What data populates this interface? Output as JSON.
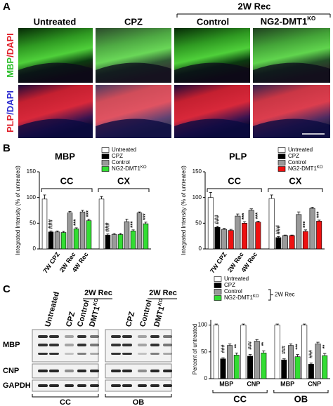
{
  "panel_labels": [
    "A",
    "B",
    "C"
  ],
  "panel_a": {
    "rec_label": "2W Rec",
    "columns": [
      {
        "name": "Untreated"
      },
      {
        "name": "CPZ"
      },
      {
        "name": "Control"
      },
      {
        "name": "NG2-DMT1",
        "sup": "KO"
      }
    ],
    "rows": [
      {
        "stain": "MBP",
        "counter": "/DAPI"
      },
      {
        "stain": "PLP",
        "counter": "/DAPI"
      }
    ]
  },
  "panel_c_blot": {
    "lane_labels": [
      {
        "text": "Untreated"
      },
      {
        "text": "CPZ"
      },
      {
        "text": "Control"
      },
      {
        "text": "DMT1",
        "sup": "KO"
      },
      {
        "text": "CPZ"
      },
      {
        "text": "Control"
      },
      {
        "text": "DMT1",
        "sup": "KO"
      }
    ],
    "rec_labels": [
      "2W Rec",
      "2W Rec"
    ],
    "rows": [
      "MBP",
      "CNP",
      "GAPDH"
    ],
    "regions": [
      "CC",
      "OB"
    ]
  },
  "chart_data": [
    {
      "type": "bar",
      "title": "MBP",
      "y_label": "Integrated Intensity (% of untreated)",
      "categories": [
        null,
        "7W CPZ",
        "2W Rec",
        "4W Rec",
        null,
        null,
        null,
        null
      ],
      "groups": [
        "CC",
        "CX"
      ],
      "ylim": [
        0,
        150
      ],
      "yticks": [
        0,
        50,
        100,
        150
      ],
      "series": [
        {
          "name": "Untreated",
          "color": "#ffffff",
          "values": [
            97,
            null,
            null,
            null,
            97,
            null,
            null,
            null
          ],
          "errors": [
            8,
            null,
            null,
            null,
            5,
            null,
            null,
            null
          ],
          "annotations": [
            null,
            null,
            null,
            null,
            null,
            null,
            null,
            null
          ]
        },
        {
          "name": "CPZ",
          "color": "#000000",
          "values": [
            null,
            33,
            null,
            null,
            null,
            27,
            null,
            null
          ],
          "errors": [
            null,
            2,
            null,
            null,
            null,
            2,
            null,
            null
          ],
          "annotations": [
            null,
            "###",
            null,
            null,
            null,
            "###",
            null,
            null
          ]
        },
        {
          "name": "Control",
          "color": "#9a9a9a",
          "values": [
            null,
            33,
            70,
            72,
            null,
            28,
            53,
            70
          ],
          "errors": [
            null,
            2,
            3,
            3,
            null,
            2,
            5,
            2
          ],
          "annotations": [
            null,
            null,
            null,
            null,
            null,
            null,
            null,
            null
          ]
        },
        {
          "name": "NG2-DMT1",
          "sup": "KO",
          "color": "#33dd33",
          "values": [
            null,
            32,
            39,
            55,
            null,
            28,
            35,
            49
          ],
          "errors": [
            null,
            2,
            2,
            3,
            null,
            2,
            2,
            3
          ],
          "annotations": [
            null,
            null,
            "***",
            "***",
            null,
            null,
            "***",
            "***"
          ]
        }
      ]
    },
    {
      "type": "bar",
      "title": "PLP",
      "y_label": "Integrated Intensity (% of untreated)",
      "categories": [
        null,
        "7W CPZ",
        "2W Rec",
        "4W Rec",
        null,
        null,
        null,
        null
      ],
      "groups": [
        "CC",
        "CX"
      ],
      "ylim": [
        0,
        150
      ],
      "yticks": [
        0,
        50,
        100,
        150
      ],
      "series": [
        {
          "name": "Untreated",
          "color": "#ffffff",
          "values": [
            100,
            null,
            null,
            null,
            98,
            null,
            null,
            null
          ],
          "errors": [
            10,
            null,
            null,
            null,
            7,
            null,
            null,
            null
          ],
          "annotations": [
            null,
            null,
            null,
            null,
            null,
            null,
            null,
            null
          ]
        },
        {
          "name": "CPZ",
          "color": "#000000",
          "values": [
            null,
            42,
            null,
            null,
            null,
            22,
            null,
            null
          ],
          "errors": [
            null,
            2,
            null,
            null,
            null,
            2,
            null,
            null
          ],
          "annotations": [
            null,
            "###",
            null,
            null,
            null,
            "###",
            null,
            null
          ]
        },
        {
          "name": "Control",
          "color": "#9a9a9a",
          "values": [
            null,
            38,
            64,
            75,
            null,
            26,
            67,
            79
          ],
          "errors": [
            null,
            2,
            4,
            3,
            null,
            1,
            5,
            2
          ],
          "annotations": [
            null,
            null,
            null,
            null,
            null,
            null,
            null,
            null
          ]
        },
        {
          "name": "NG2-DMT1",
          "sup": "KO",
          "color": "#ee1111",
          "values": [
            null,
            36,
            50,
            52,
            null,
            26,
            34,
            54
          ],
          "errors": [
            null,
            2,
            3,
            2,
            null,
            1,
            3,
            2
          ],
          "annotations": [
            null,
            null,
            "***",
            "***",
            null,
            null,
            "***",
            "***"
          ]
        }
      ]
    },
    {
      "type": "bar",
      "y_label": "Percent of untreated",
      "legend_bracket": "2W Rec",
      "categories": [
        "MBP",
        "CNP",
        "MBP",
        "CNP"
      ],
      "groups": [
        "CC",
        "OB"
      ],
      "ylim": [
        0,
        110
      ],
      "yticks": [
        0,
        50,
        100
      ],
      "series": [
        {
          "name": "Untreated",
          "color": "#ffffff",
          "values": [
            100,
            100,
            100,
            100
          ],
          "errors": [
            2,
            2,
            2,
            2
          ],
          "annotations": [
            null,
            null,
            null,
            null
          ]
        },
        {
          "name": "CPZ",
          "color": "#000000",
          "values": [
            37,
            42,
            35,
            27
          ],
          "errors": [
            2,
            3,
            2,
            2
          ],
          "annotations": [
            "###",
            "###",
            "###",
            "###"
          ]
        },
        {
          "name": "Control",
          "color": "#9a9a9a",
          "values": [
            62,
            70,
            62,
            65
          ],
          "errors": [
            3,
            3,
            3,
            3
          ],
          "annotations": [
            null,
            null,
            null,
            null
          ]
        },
        {
          "name": "NG2-DMT1",
          "sup": "KO",
          "color": "#33dd33",
          "values": [
            44,
            48,
            41,
            43
          ],
          "errors": [
            4,
            4,
            4,
            4
          ],
          "annotations": [
            "**",
            "**",
            "***",
            "**"
          ]
        }
      ]
    }
  ]
}
